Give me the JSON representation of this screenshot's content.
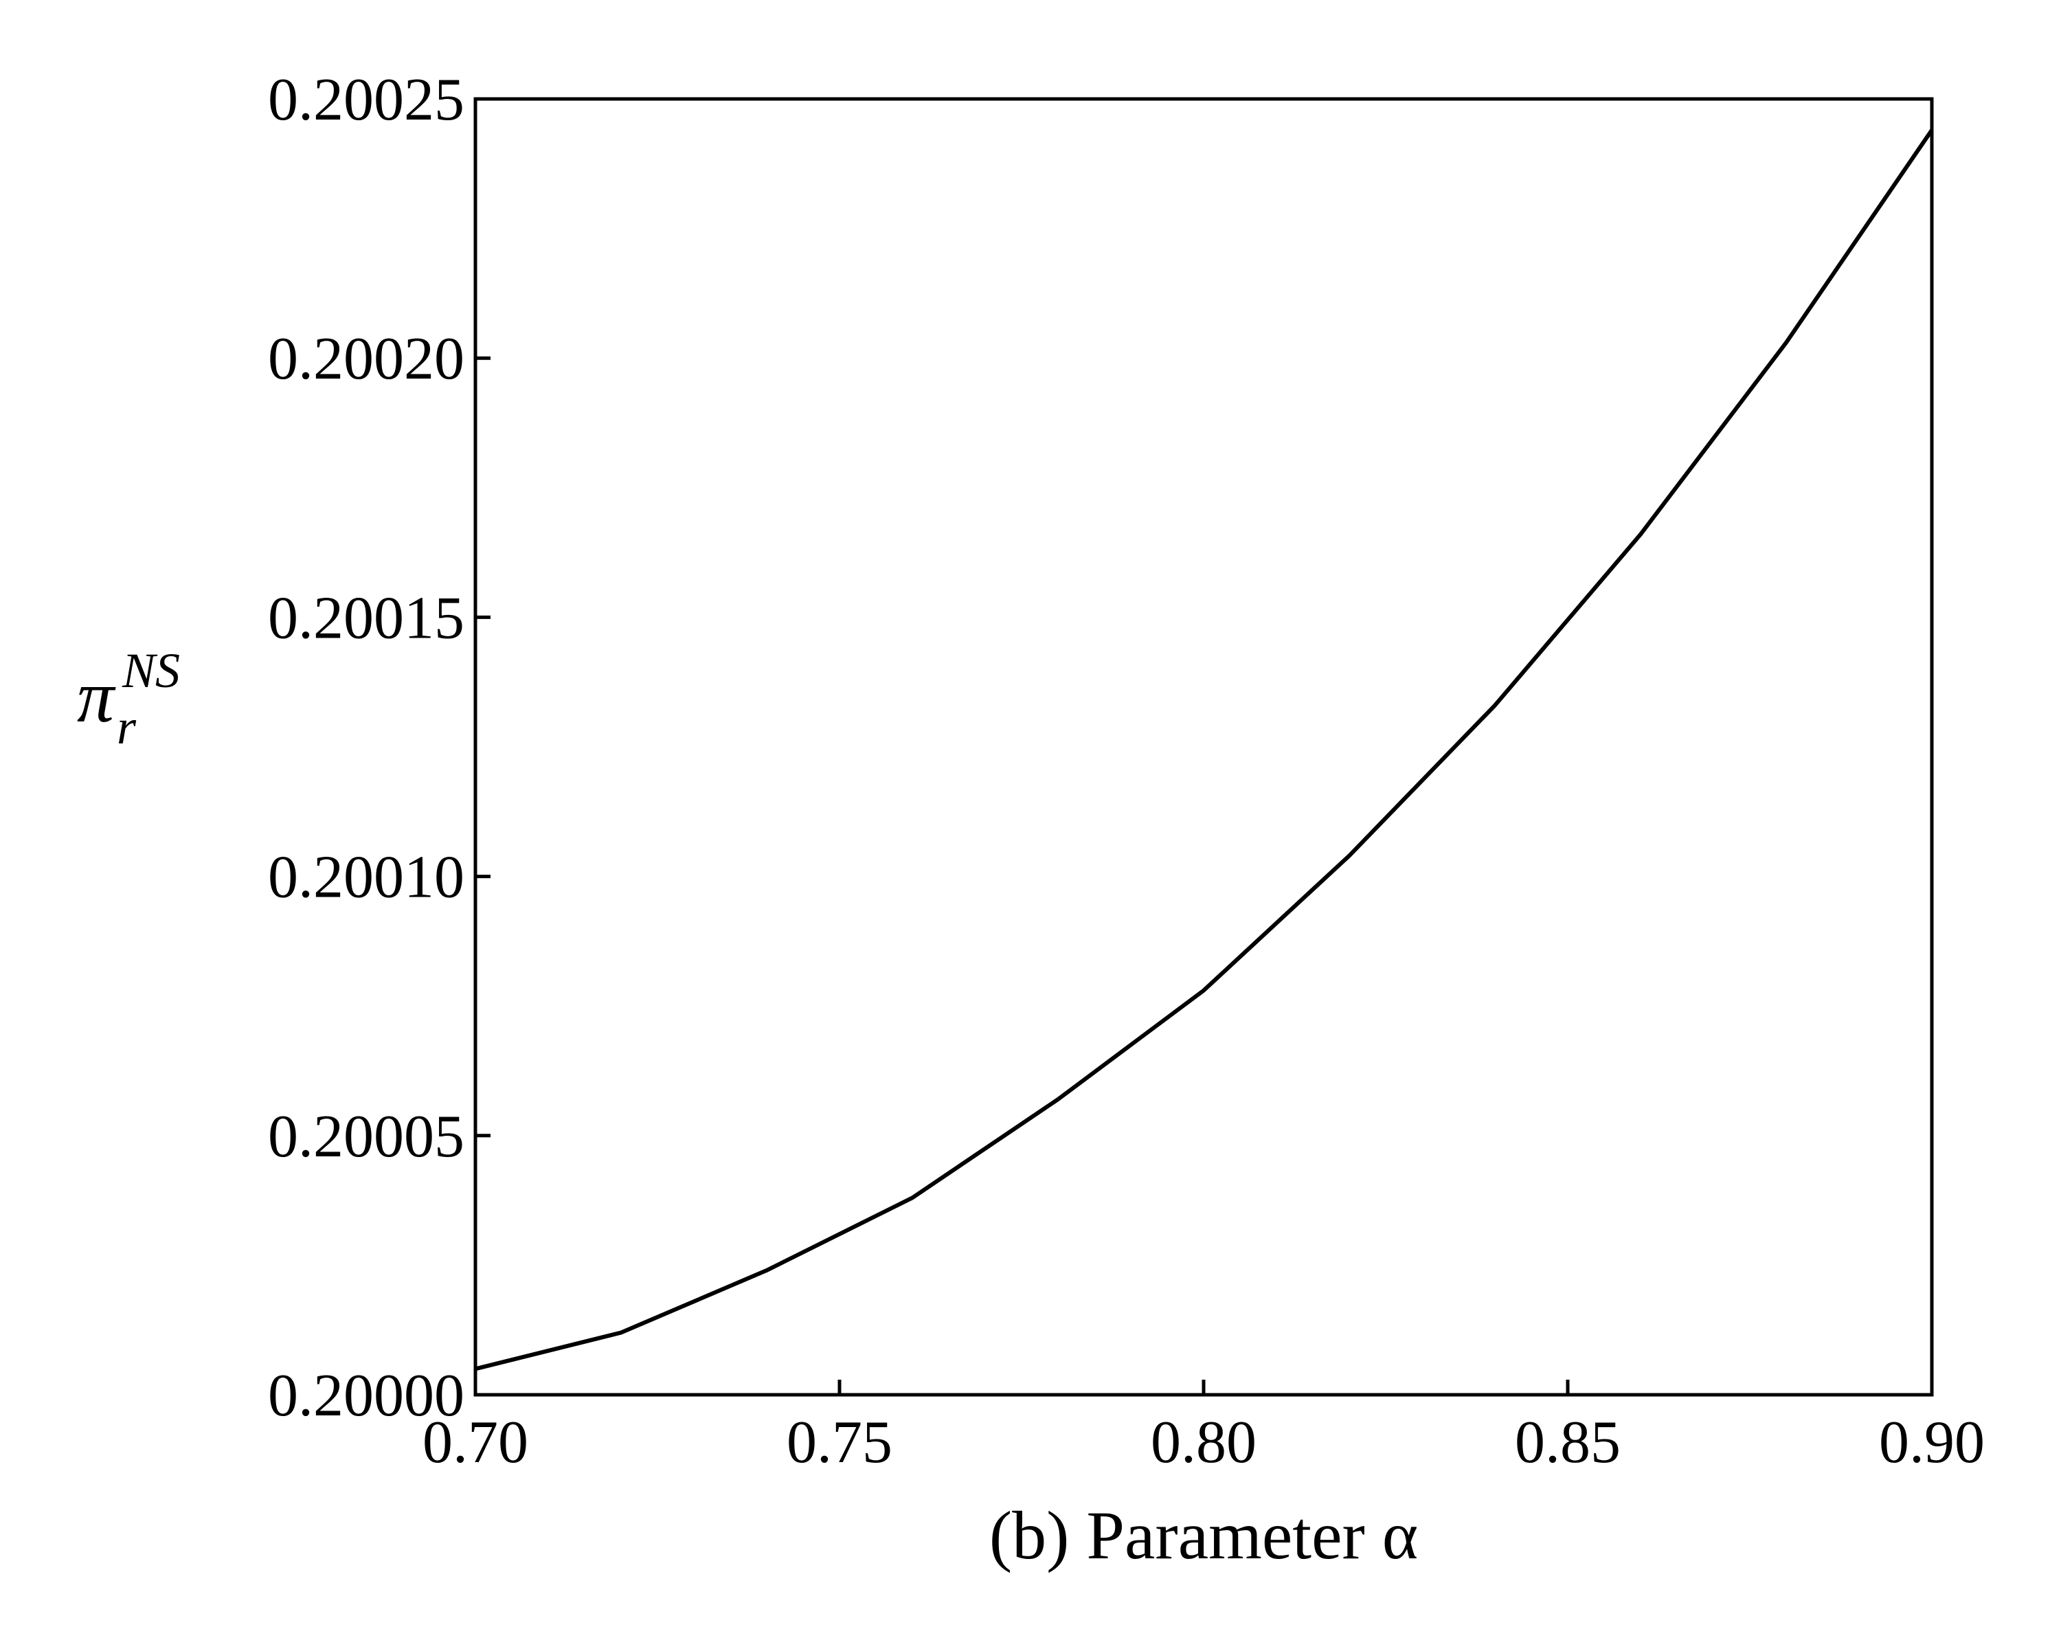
{
  "chart_data": {
    "type": "line",
    "title": "",
    "xlabel": "(b) Parameter α",
    "ylabel": {
      "main": "π",
      "sub": "r",
      "sup": "NS"
    },
    "xlim": [
      0.7,
      0.9
    ],
    "ylim": [
      0.2,
      0.20025
    ],
    "x_ticks": [
      "0.70",
      "0.75",
      "0.80",
      "0.85",
      "0.90"
    ],
    "y_ticks": [
      "0.20000",
      "0.20005",
      "0.20010",
      "0.20015",
      "0.20020",
      "0.20025"
    ],
    "grid": false,
    "legend": "none",
    "series": [
      {
        "color": "#000000",
        "x": [
          0.7,
          0.72,
          0.74,
          0.76,
          0.78,
          0.8,
          0.82,
          0.84,
          0.86,
          0.88,
          0.9
        ],
        "y": [
          0.200005,
          0.200012,
          0.200024,
          0.200038,
          0.200057,
          0.200078,
          0.200104,
          0.200133,
          0.200166,
          0.200203,
          0.200244
        ]
      }
    ]
  }
}
